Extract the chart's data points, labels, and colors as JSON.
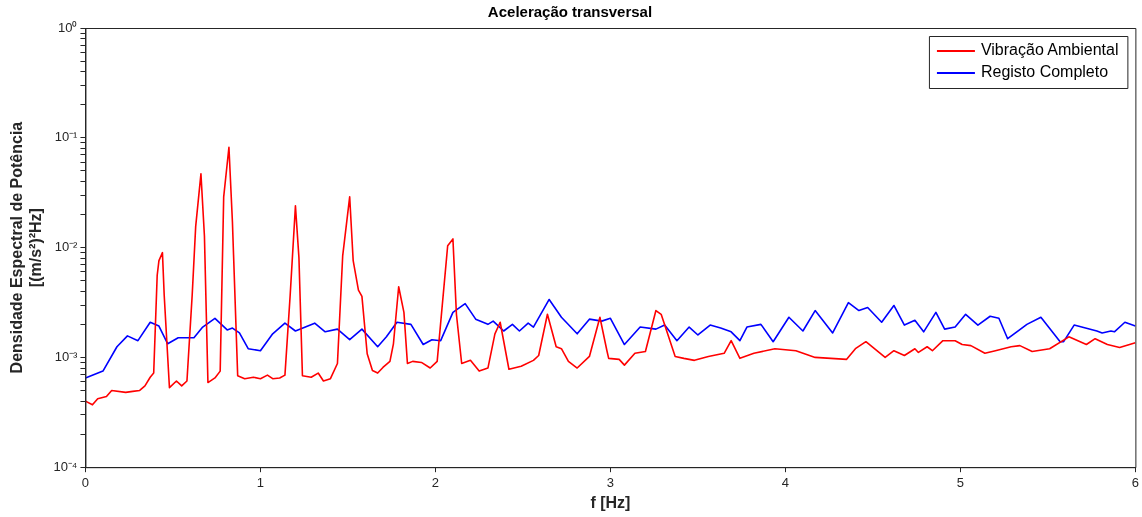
{
  "chart_data": {
    "type": "line",
    "title": "Aceleração transversal",
    "xlabel": "f [Hz]",
    "ylabel": "Densidade Espectral de Potência\n[(m/s²)²Hz]",
    "log": "y",
    "xlim": [
      0,
      6
    ],
    "xticks": [
      0,
      1,
      2,
      3,
      4,
      5,
      6
    ],
    "ylim": [
      0.0001,
      1
    ],
    "yticks": [
      {
        "value": 0.0001,
        "label": "10⁻⁴"
      },
      {
        "value": 0.0002,
        "label": null
      },
      {
        "value": 0.0003,
        "label": null
      },
      {
        "value": 0.0004,
        "label": null
      },
      {
        "value": 0.0005,
        "label": null
      },
      {
        "value": 0.0006,
        "label": null
      },
      {
        "value": 0.0007,
        "label": null
      },
      {
        "value": 0.0008,
        "label": null
      },
      {
        "value": 0.0009,
        "label": null
      },
      {
        "value": 0.001,
        "label": "10⁻³"
      },
      {
        "value": 0.002,
        "label": null
      },
      {
        "value": 0.003,
        "label": null
      },
      {
        "value": 0.004,
        "label": null
      },
      {
        "value": 0.005,
        "label": null
      },
      {
        "value": 0.006,
        "label": null
      },
      {
        "value": 0.007,
        "label": null
      },
      {
        "value": 0.008,
        "label": null
      },
      {
        "value": 0.009,
        "label": null
      },
      {
        "value": 0.01,
        "label": "10⁻²"
      },
      {
        "value": 0.02,
        "label": null
      },
      {
        "value": 0.03,
        "label": null
      },
      {
        "value": 0.04,
        "label": null
      },
      {
        "value": 0.05,
        "label": null
      },
      {
        "value": 0.06,
        "label": null
      },
      {
        "value": 0.07,
        "label": null
      },
      {
        "value": 0.08,
        "label": null
      },
      {
        "value": 0.09,
        "label": null
      },
      {
        "value": 0.1,
        "label": "10⁻¹"
      },
      {
        "value": 0.2,
        "label": null
      },
      {
        "value": 0.3,
        "label": null
      },
      {
        "value": 0.4,
        "label": null
      },
      {
        "value": 0.5,
        "label": null
      },
      {
        "value": 0.6,
        "label": null
      },
      {
        "value": 0.7,
        "label": null
      },
      {
        "value": 0.8,
        "label": null
      },
      {
        "value": 0.9,
        "label": null
      },
      {
        "value": 1,
        "label": "10⁰"
      }
    ],
    "grid": false,
    "legend": "top right",
    "marker": "none",
    "line_style": "solid",
    "series": [
      {
        "name": "Vibração Ambiental",
        "color": "#ff0000",
        "x": [
          0,
          0.04,
          0.07,
          0.12,
          0.15,
          0.23,
          0.27,
          0.31,
          0.34,
          0.37,
          0.39,
          0.41,
          0.42,
          0.44,
          0.45,
          0.48,
          0.52,
          0.55,
          0.58,
          0.61,
          0.63,
          0.66,
          0.68,
          0.7,
          0.74,
          0.77,
          0.79,
          0.82,
          0.84,
          0.87,
          0.91,
          0.96,
          1.0,
          1.04,
          1.07,
          1.11,
          1.14,
          1.17,
          1.2,
          1.22,
          1.24,
          1.29,
          1.33,
          1.36,
          1.4,
          1.44,
          1.47,
          1.51,
          1.53,
          1.56,
          1.58,
          1.61,
          1.64,
          1.67,
          1.7,
          1.74,
          1.76,
          1.79,
          1.82,
          1.84,
          1.87,
          1.92,
          1.97,
          2.01,
          2.07,
          2.1,
          2.12,
          2.15,
          2.2,
          2.25,
          2.3,
          2.34,
          2.37,
          2.42,
          2.49,
          2.56,
          2.59,
          2.64,
          2.69,
          2.72,
          2.76,
          2.81,
          2.88,
          2.94,
          2.98,
          2.99,
          3.05,
          3.08,
          3.14,
          3.2,
          3.26,
          3.29,
          3.37,
          3.42,
          3.48,
          3.56,
          3.65,
          3.69,
          3.74,
          3.82,
          3.94,
          4.06,
          4.17,
          4.35,
          4.4,
          4.46,
          4.57,
          4.62,
          4.68,
          4.74,
          4.76,
          4.81,
          4.84,
          4.9,
          4.97,
          5.01,
          5.06,
          5.14,
          5.2,
          5.29,
          5.34,
          5.41,
          5.51,
          5.62,
          5.72,
          5.77,
          5.84,
          5.91,
          6.0
        ],
        "values": [
          0.0004,
          0.00037,
          0.00042,
          0.00044,
          0.0005,
          0.00048,
          0.00049,
          0.0005,
          0.00055,
          0.00066,
          0.00072,
          0.0056,
          0.0076,
          0.009,
          0.0037,
          0.00053,
          0.00061,
          0.00055,
          0.00061,
          0.0037,
          0.0156,
          0.047,
          0.0127,
          0.00059,
          0.00065,
          0.00075,
          0.029,
          0.082,
          0.017,
          0.00068,
          0.00064,
          0.00066,
          0.00064,
          0.00069,
          0.00064,
          0.00065,
          0.00069,
          0.0037,
          0.024,
          0.0081,
          0.00068,
          0.00066,
          0.00072,
          0.00061,
          0.00064,
          0.00088,
          0.0084,
          0.029,
          0.0076,
          0.0041,
          0.0036,
          0.00108,
          0.00076,
          0.00072,
          0.00081,
          0.00092,
          0.00133,
          0.0044,
          0.00257,
          0.00088,
          0.00092,
          0.0009,
          0.0008,
          0.00092,
          0.0104,
          0.012,
          0.00247,
          0.00088,
          0.00094,
          0.00075,
          0.0008,
          0.00164,
          0.00209,
          0.00078,
          0.00083,
          0.00094,
          0.00104,
          0.00247,
          0.00125,
          0.0012,
          0.00092,
          0.0008,
          0.00102,
          0.00232,
          0.00115,
          0.00098,
          0.00096,
          0.00085,
          0.00109,
          0.00113,
          0.00267,
          0.00247,
          0.00102,
          0.00098,
          0.00094,
          0.00102,
          0.00109,
          0.00142,
          0.00098,
          0.00109,
          0.0012,
          0.00115,
          0.001,
          0.00096,
          0.0012,
          0.00139,
          0.001,
          0.00115,
          0.00104,
          0.0012,
          0.00111,
          0.00125,
          0.00115,
          0.00142,
          0.00142,
          0.00131,
          0.00128,
          0.00109,
          0.00115,
          0.00125,
          0.00128,
          0.00113,
          0.0012,
          0.00154,
          0.00131,
          0.00148,
          0.00131,
          0.00123,
          0.00136
        ]
      },
      {
        "name": "Registo Completo",
        "color": "#0000ff",
        "x": [
          0,
          0.1,
          0.18,
          0.24,
          0.3,
          0.37,
          0.42,
          0.47,
          0.53,
          0.62,
          0.67,
          0.74,
          0.81,
          0.84,
          0.88,
          0.93,
          1.0,
          1.07,
          1.14,
          1.2,
          1.31,
          1.37,
          1.44,
          1.51,
          1.58,
          1.67,
          1.72,
          1.78,
          1.86,
          1.93,
          1.98,
          2.03,
          2.1,
          2.17,
          2.23,
          2.3,
          2.33,
          2.39,
          2.44,
          2.48,
          2.53,
          2.56,
          2.65,
          2.72,
          2.81,
          2.88,
          2.95,
          3.0,
          3.08,
          3.17,
          3.26,
          3.31,
          3.38,
          3.45,
          3.5,
          3.57,
          3.63,
          3.69,
          3.74,
          3.78,
          3.86,
          3.93,
          4.02,
          4.1,
          4.17,
          4.27,
          4.36,
          4.42,
          4.47,
          4.55,
          4.62,
          4.68,
          4.74,
          4.79,
          4.86,
          4.91,
          4.97,
          5.03,
          5.1,
          5.17,
          5.22,
          5.27,
          5.38,
          5.46,
          5.57,
          5.59,
          5.65,
          5.78,
          5.81,
          5.86,
          5.88,
          5.94,
          6.0
        ],
        "values": [
          0.00065,
          0.00075,
          0.00125,
          0.00157,
          0.00142,
          0.00209,
          0.00193,
          0.00133,
          0.00151,
          0.00151,
          0.00189,
          0.00227,
          0.00178,
          0.00185,
          0.00167,
          0.0012,
          0.00115,
          0.00164,
          0.00205,
          0.00174,
          0.00205,
          0.00171,
          0.00181,
          0.00145,
          0.00181,
          0.00125,
          0.00154,
          0.00209,
          0.002,
          0.00131,
          0.00145,
          0.00142,
          0.00257,
          0.00309,
          0.00223,
          0.002,
          0.00214,
          0.00174,
          0.002,
          0.00174,
          0.00205,
          0.00189,
          0.00337,
          0.00232,
          0.00164,
          0.00223,
          0.00214,
          0.00227,
          0.00131,
          0.00189,
          0.00181,
          0.00197,
          0.00142,
          0.00189,
          0.0016,
          0.00197,
          0.00185,
          0.00171,
          0.00142,
          0.00189,
          0.002,
          0.00139,
          0.00232,
          0.00174,
          0.00267,
          0.00167,
          0.00315,
          0.00267,
          0.00285,
          0.00209,
          0.00297,
          0.00197,
          0.00218,
          0.00171,
          0.00257,
          0.00181,
          0.00189,
          0.00247,
          0.00197,
          0.00237,
          0.00227,
          0.00148,
          0.002,
          0.00232,
          0.00139,
          0.00139,
          0.00197,
          0.00174,
          0.00167,
          0.00174,
          0.00171,
          0.00209,
          0.00193
        ]
      }
    ]
  }
}
